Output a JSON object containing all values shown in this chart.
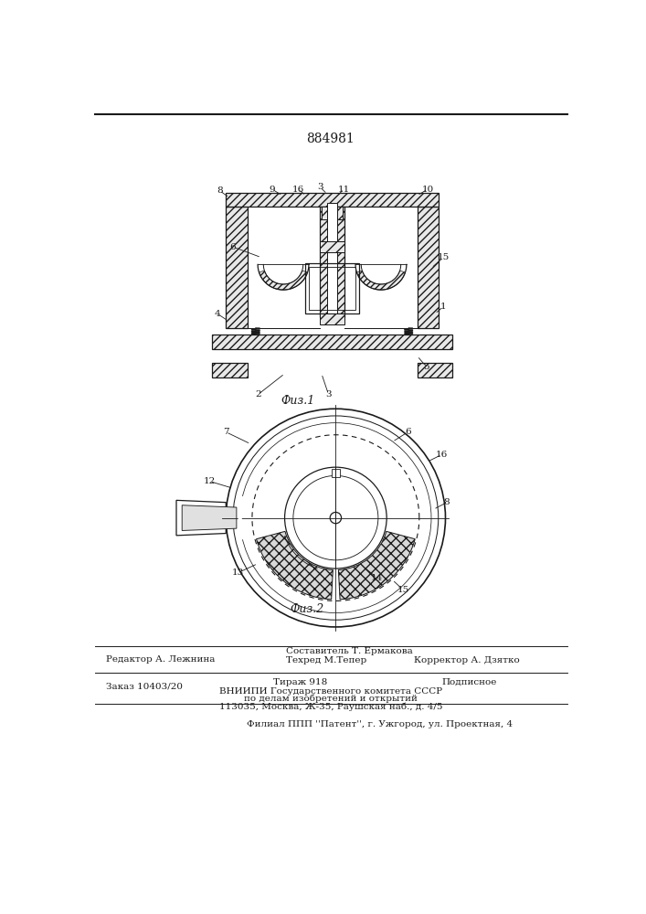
{
  "patent_number": "884981",
  "fig1_caption": "Физ.1",
  "fig2_caption": "Физ.2",
  "editor_line": "Редактор А. Лежнина",
  "composer_line": "Составитель Т. Ермакова",
  "techred_line": "Техред М.Тепер",
  "corrector_line": "Корректор А. Дзятко",
  "order_line": "Заказ 10403/20",
  "tirazh_line": "Тираж 918",
  "podpisnoe_line": "Подписное",
  "vnipi_line": "ВНИИПИ Государственного комитета СССР",
  "dela_line": "по делам изобретений и открытий",
  "address_line": "113035, Москва, Ж-35, Раушская наб., д. 4/5",
  "filial_line": "Филиал ППП ''Патент'', г. Ужгород, ул. Проектная, 4",
  "bg_color": "#ffffff",
  "line_color": "#1a1a1a"
}
